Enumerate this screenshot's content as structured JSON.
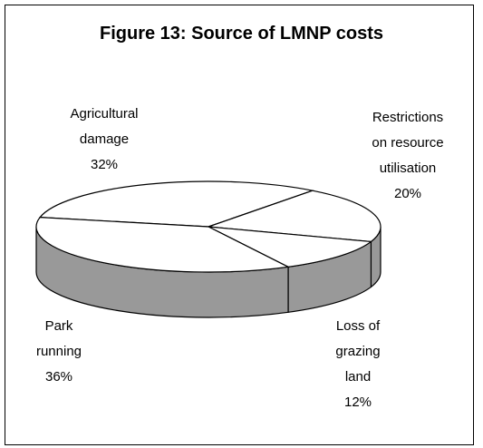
{
  "chart_data": {
    "type": "pie3d",
    "title": "Figure 13: Source of LMNP costs",
    "categories": [
      "Agricultural damage",
      "Restrictions on resource utilisation",
      "Loss of grazing land",
      "Park running"
    ],
    "values": [
      32,
      20,
      12,
      36
    ],
    "value_labels": [
      "32%",
      "20%",
      "12%",
      "36%"
    ],
    "top_color": "#ffffff",
    "side_color": "#999999"
  }
}
